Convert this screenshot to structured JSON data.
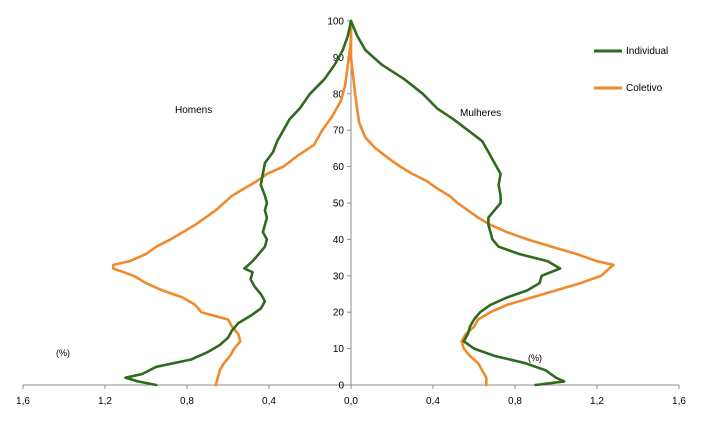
{
  "chart_data": {
    "type": "line",
    "subtype": "population-pyramid",
    "x_ticks": [
      "1,6",
      "1,2",
      "0,8",
      "0,4",
      "0,0",
      "0,4",
      "0,8",
      "1,2",
      "1,6"
    ],
    "x_tick_values": [
      -1.6,
      -1.2,
      -0.8,
      -0.4,
      0,
      0.4,
      0.8,
      1.2,
      1.6
    ],
    "y_ticks": [
      "0",
      "10",
      "20",
      "30",
      "40",
      "50",
      "60",
      "70",
      "80",
      "90",
      "100"
    ],
    "xlim": [
      -1.6,
      1.6
    ],
    "ylim": [
      0,
      100
    ],
    "grid": false,
    "legend_position": "top-right",
    "annotations": {
      "men": "Homens",
      "women": "Mulheres",
      "unit_left": "(%)",
      "unit_right": "(%)"
    },
    "series": [
      {
        "name": "Individual",
        "color": "#2e6b1f",
        "men": [
          [
            0,
            -0.95
          ],
          [
            1,
            -1.04
          ],
          [
            2,
            -1.1
          ],
          [
            3,
            -1.02
          ],
          [
            5,
            -0.95
          ],
          [
            7,
            -0.78
          ],
          [
            9,
            -0.7
          ],
          [
            11,
            -0.64
          ],
          [
            13,
            -0.6
          ],
          [
            15,
            -0.58
          ],
          [
            17,
            -0.55
          ],
          [
            19,
            -0.49
          ],
          [
            21,
            -0.44
          ],
          [
            23,
            -0.42
          ],
          [
            25,
            -0.44
          ],
          [
            27,
            -0.47
          ],
          [
            29,
            -0.49
          ],
          [
            31,
            -0.48
          ],
          [
            32,
            -0.52
          ],
          [
            34,
            -0.48
          ],
          [
            36,
            -0.45
          ],
          [
            38,
            -0.42
          ],
          [
            40,
            -0.41
          ],
          [
            42,
            -0.43
          ],
          [
            44,
            -0.42
          ],
          [
            46,
            -0.41
          ],
          [
            48,
            -0.42
          ],
          [
            50,
            -0.41
          ],
          [
            52,
            -0.42
          ],
          [
            55,
            -0.44
          ],
          [
            58,
            -0.43
          ],
          [
            61,
            -0.42
          ],
          [
            64,
            -0.38
          ],
          [
            67,
            -0.36
          ],
          [
            70,
            -0.33
          ],
          [
            73,
            -0.3
          ],
          [
            76,
            -0.25
          ],
          [
            80,
            -0.2
          ],
          [
            84,
            -0.13
          ],
          [
            88,
            -0.08
          ],
          [
            92,
            -0.04
          ],
          [
            96,
            -0.015
          ],
          [
            100,
            0.0
          ]
        ],
        "women": [
          [
            0,
            0.9
          ],
          [
            1,
            1.04
          ],
          [
            2,
            1.0
          ],
          [
            4,
            0.95
          ],
          [
            6,
            0.85
          ],
          [
            8,
            0.7
          ],
          [
            10,
            0.6
          ],
          [
            12,
            0.55
          ],
          [
            14,
            0.57
          ],
          [
            16,
            0.58
          ],
          [
            18,
            0.6
          ],
          [
            20,
            0.63
          ],
          [
            22,
            0.68
          ],
          [
            24,
            0.76
          ],
          [
            26,
            0.86
          ],
          [
            28,
            0.92
          ],
          [
            30,
            0.93
          ],
          [
            32,
            1.02
          ],
          [
            34,
            0.96
          ],
          [
            36,
            0.82
          ],
          [
            38,
            0.72
          ],
          [
            40,
            0.69
          ],
          [
            42,
            0.68
          ],
          [
            44,
            0.67
          ],
          [
            46,
            0.67
          ],
          [
            48,
            0.7
          ],
          [
            50,
            0.73
          ],
          [
            52,
            0.73
          ],
          [
            55,
            0.72
          ],
          [
            58,
            0.73
          ],
          [
            61,
            0.7
          ],
          [
            64,
            0.67
          ],
          [
            67,
            0.64
          ],
          [
            70,
            0.57
          ],
          [
            73,
            0.5
          ],
          [
            76,
            0.42
          ],
          [
            80,
            0.35
          ],
          [
            84,
            0.26
          ],
          [
            88,
            0.15
          ],
          [
            92,
            0.07
          ],
          [
            96,
            0.03
          ],
          [
            100,
            0.0
          ]
        ]
      },
      {
        "name": "Coletivo",
        "color": "#f08a2c",
        "men": [
          [
            0,
            -0.66
          ],
          [
            2,
            -0.65
          ],
          [
            4,
            -0.64
          ],
          [
            6,
            -0.62
          ],
          [
            8,
            -0.59
          ],
          [
            10,
            -0.57
          ],
          [
            12,
            -0.54
          ],
          [
            14,
            -0.55
          ],
          [
            16,
            -0.58
          ],
          [
            18,
            -0.6
          ],
          [
            20,
            -0.73
          ],
          [
            22,
            -0.76
          ],
          [
            24,
            -0.82
          ],
          [
            26,
            -0.92
          ],
          [
            28,
            -1.0
          ],
          [
            30,
            -1.06
          ],
          [
            32,
            -1.16
          ],
          [
            33,
            -1.16
          ],
          [
            34,
            -1.08
          ],
          [
            36,
            -1.0
          ],
          [
            38,
            -0.95
          ],
          [
            40,
            -0.88
          ],
          [
            42,
            -0.82
          ],
          [
            44,
            -0.76
          ],
          [
            46,
            -0.71
          ],
          [
            48,
            -0.66
          ],
          [
            50,
            -0.62
          ],
          [
            52,
            -0.58
          ],
          [
            54,
            -0.52
          ],
          [
            56,
            -0.46
          ],
          [
            58,
            -0.41
          ],
          [
            60,
            -0.33
          ],
          [
            63,
            -0.26
          ],
          [
            66,
            -0.18
          ],
          [
            70,
            -0.14
          ],
          [
            74,
            -0.09
          ],
          [
            78,
            -0.05
          ],
          [
            82,
            -0.03
          ],
          [
            86,
            -0.02
          ],
          [
            90,
            -0.01
          ],
          [
            95,
            0.0
          ],
          [
            100,
            0.0
          ]
        ],
        "women": [
          [
            0,
            0.66
          ],
          [
            2,
            0.66
          ],
          [
            4,
            0.64
          ],
          [
            6,
            0.62
          ],
          [
            8,
            0.58
          ],
          [
            10,
            0.55
          ],
          [
            12,
            0.54
          ],
          [
            14,
            0.56
          ],
          [
            16,
            0.6
          ],
          [
            18,
            0.62
          ],
          [
            20,
            0.68
          ],
          [
            22,
            0.76
          ],
          [
            24,
            0.88
          ],
          [
            26,
            1.0
          ],
          [
            28,
            1.12
          ],
          [
            30,
            1.22
          ],
          [
            32,
            1.26
          ],
          [
            33,
            1.28
          ],
          [
            34,
            1.2
          ],
          [
            36,
            1.1
          ],
          [
            38,
            0.98
          ],
          [
            40,
            0.86
          ],
          [
            42,
            0.76
          ],
          [
            44,
            0.68
          ],
          [
            46,
            0.62
          ],
          [
            48,
            0.57
          ],
          [
            50,
            0.52
          ],
          [
            52,
            0.48
          ],
          [
            54,
            0.42
          ],
          [
            56,
            0.37
          ],
          [
            58,
            0.3
          ],
          [
            60,
            0.24
          ],
          [
            62,
            0.19
          ],
          [
            65,
            0.12
          ],
          [
            68,
            0.07
          ],
          [
            72,
            0.04
          ],
          [
            76,
            0.03
          ],
          [
            80,
            0.02
          ],
          [
            85,
            0.01
          ],
          [
            90,
            0.0
          ],
          [
            95,
            0.0
          ],
          [
            100,
            0.0
          ]
        ]
      }
    ]
  }
}
